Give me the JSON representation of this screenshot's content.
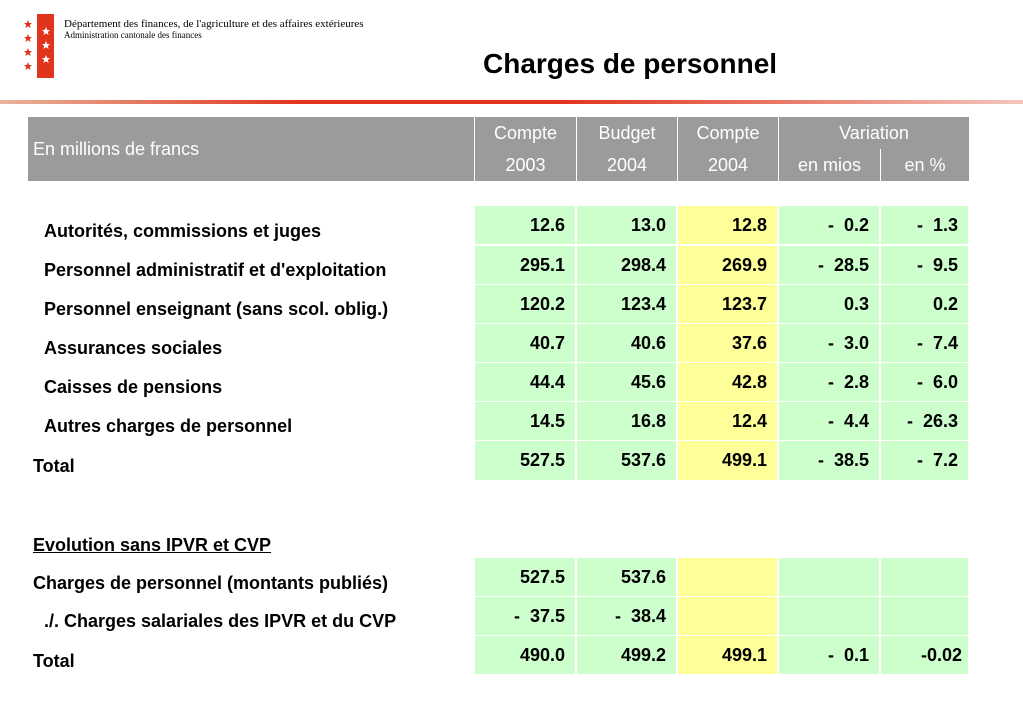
{
  "header": {
    "department": "Département des finances, de l'agriculture et des affaires extérieures",
    "administration": "Administration cantonale des finances",
    "title": "Charges de personnel"
  },
  "table_header": {
    "unit_label": "En millions de francs",
    "col_compte_2003": [
      "Compte",
      "2003"
    ],
    "col_budget_2004": [
      "Budget",
      "2004"
    ],
    "col_compte_2004": [
      "Compte",
      "2004"
    ],
    "variation": "Variation",
    "variation_mios": "en mios",
    "variation_pct": "en %"
  },
  "rows": [
    {
      "label": "Autorités, commissions et juges",
      "c2003": "12.6",
      "b2004": "13.0",
      "c2004": "12.8",
      "var_mios": "-  0.2",
      "var_pct": "-  1.3"
    },
    {
      "label": "Personnel administratif et d'exploitation",
      "c2003": "295.1",
      "b2004": "298.4",
      "c2004": "269.9",
      "var_mios": "-  28.5",
      "var_pct": "-  9.5"
    },
    {
      "label": "Personnel enseignant (sans scol. oblig.)",
      "c2003": "120.2",
      "b2004": "123.4",
      "c2004": "123.7",
      "var_mios": "0.3",
      "var_pct": "0.2"
    },
    {
      "label": "Assurances sociales",
      "c2003": "40.7",
      "b2004": "40.6",
      "c2004": "37.6",
      "var_mios": "-  3.0",
      "var_pct": "-  7.4"
    },
    {
      "label": "Caisses de pensions",
      "c2003": "44.4",
      "b2004": "45.6",
      "c2004": "42.8",
      "var_mios": "-  2.8",
      "var_pct": "-  6.0"
    },
    {
      "label": "Autres charges de personnel",
      "c2003": "14.5",
      "b2004": "16.8",
      "c2004": "12.4",
      "var_mios": "-  4.4",
      "var_pct": "-  26.3"
    },
    {
      "label": "Total",
      "c2003": "527.5",
      "b2004": "537.6",
      "c2004": "499.1",
      "var_mios": "-  38.5",
      "var_pct": "-  7.2"
    }
  ],
  "evolution": {
    "heading": "Evolution sans IPVR et CVP",
    "rows": [
      {
        "label": "Charges de personnel (montants publiés)",
        "c2003": "527.5",
        "b2004": "537.6",
        "c2004": "",
        "var_mios": "",
        "var_pct": ""
      },
      {
        "label": "./. Charges salariales des IPVR et du CVP",
        "c2003": "-  37.5",
        "b2004": "-  38.4",
        "c2004": "",
        "var_mios": "",
        "var_pct": ""
      },
      {
        "label": "Total",
        "c2003": "490.0",
        "b2004": "499.2",
        "c2004": "499.1",
        "var_mios": "-  0.1",
        "var_pct": "-0.02"
      }
    ]
  },
  "colors": {
    "header_gray": "#9b9b9b",
    "cell_green": "#ccffcc",
    "cell_yellow": "#ffff99",
    "accent_red": "#e1341d"
  }
}
